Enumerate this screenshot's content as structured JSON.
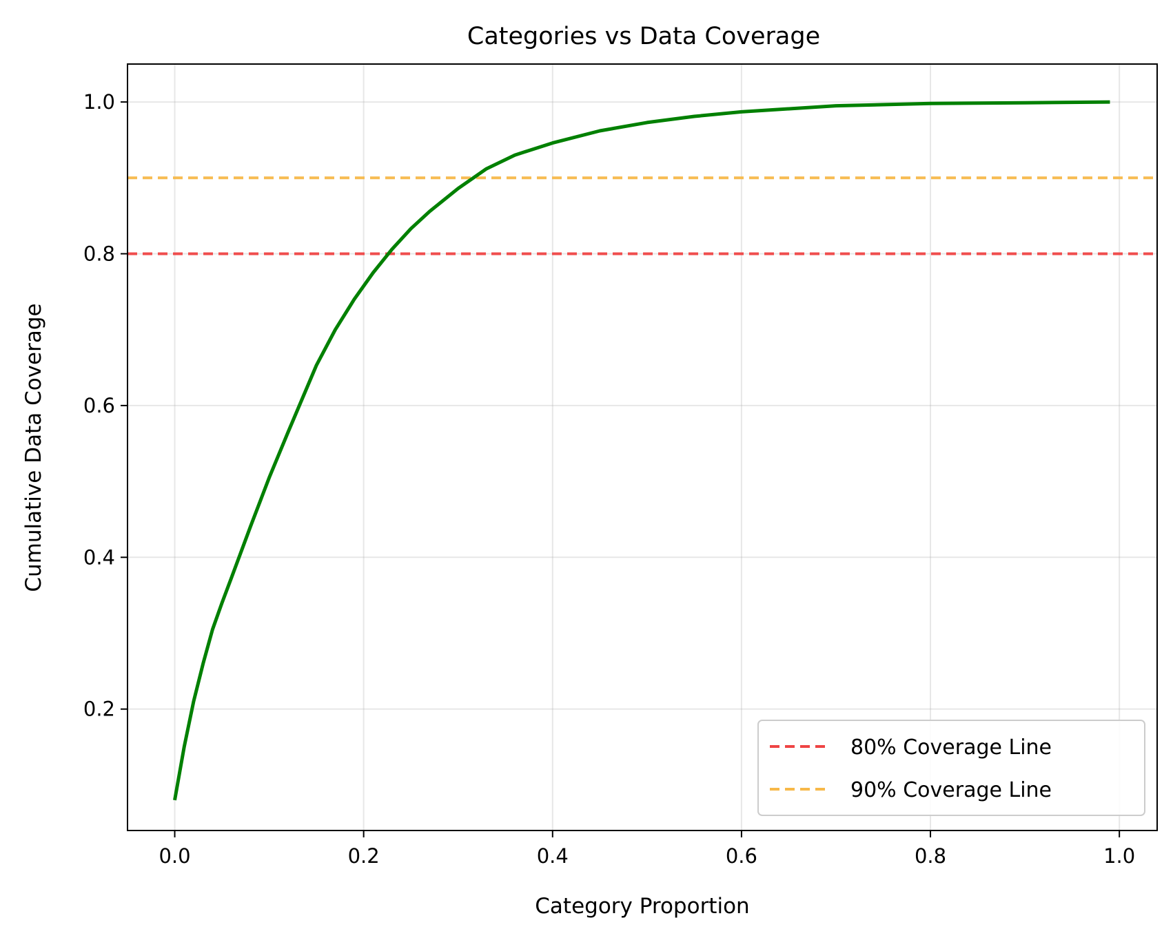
{
  "chart_data": {
    "type": "line",
    "title": "Categories vs Data Coverage",
    "xlabel": "Category Proportion",
    "ylabel": "Cumulative Data Coverage",
    "xlim": [
      -0.05,
      1.04
    ],
    "ylim": [
      0.04,
      1.05
    ],
    "xticks": [
      0.0,
      0.2,
      0.4,
      0.6,
      0.8,
      1.0
    ],
    "xtick_labels": [
      "0.0",
      "0.2",
      "0.4",
      "0.6",
      "0.8",
      "1.0"
    ],
    "yticks": [
      0.2,
      0.4,
      0.6,
      0.8,
      1.0
    ],
    "ytick_labels": [
      "0.2",
      "0.4",
      "0.6",
      "0.8",
      "1.0"
    ],
    "grid": true,
    "legend_position": "lower-right",
    "series": [
      {
        "color": "#008000",
        "x": [
          0.0,
          0.01,
          0.02,
          0.03,
          0.04,
          0.05,
          0.06,
          0.08,
          0.1,
          0.12,
          0.15,
          0.17,
          0.19,
          0.21,
          0.23,
          0.25,
          0.27,
          0.3,
          0.33,
          0.36,
          0.4,
          0.45,
          0.5,
          0.55,
          0.6,
          0.7,
          0.8,
          0.9,
          0.99
        ],
        "y": [
          0.08,
          0.15,
          0.21,
          0.26,
          0.305,
          0.34,
          0.373,
          0.44,
          0.505,
          0.565,
          0.653,
          0.7,
          0.74,
          0.775,
          0.806,
          0.833,
          0.856,
          0.886,
          0.912,
          0.93,
          0.946,
          0.962,
          0.973,
          0.981,
          0.987,
          0.995,
          0.998,
          0.999,
          1.0
        ]
      }
    ],
    "reference_lines": [
      {
        "name": "80% Coverage Line",
        "y": 0.8,
        "color": "#ef4444",
        "style": "dashed"
      },
      {
        "name": "90% Coverage Line",
        "y": 0.9,
        "color": "#f7b849",
        "style": "dashed"
      }
    ],
    "legend": [
      {
        "label": "80% Coverage Line",
        "color": "#ef4444"
      },
      {
        "label": "90% Coverage Line",
        "color": "#f7b849"
      }
    ]
  }
}
